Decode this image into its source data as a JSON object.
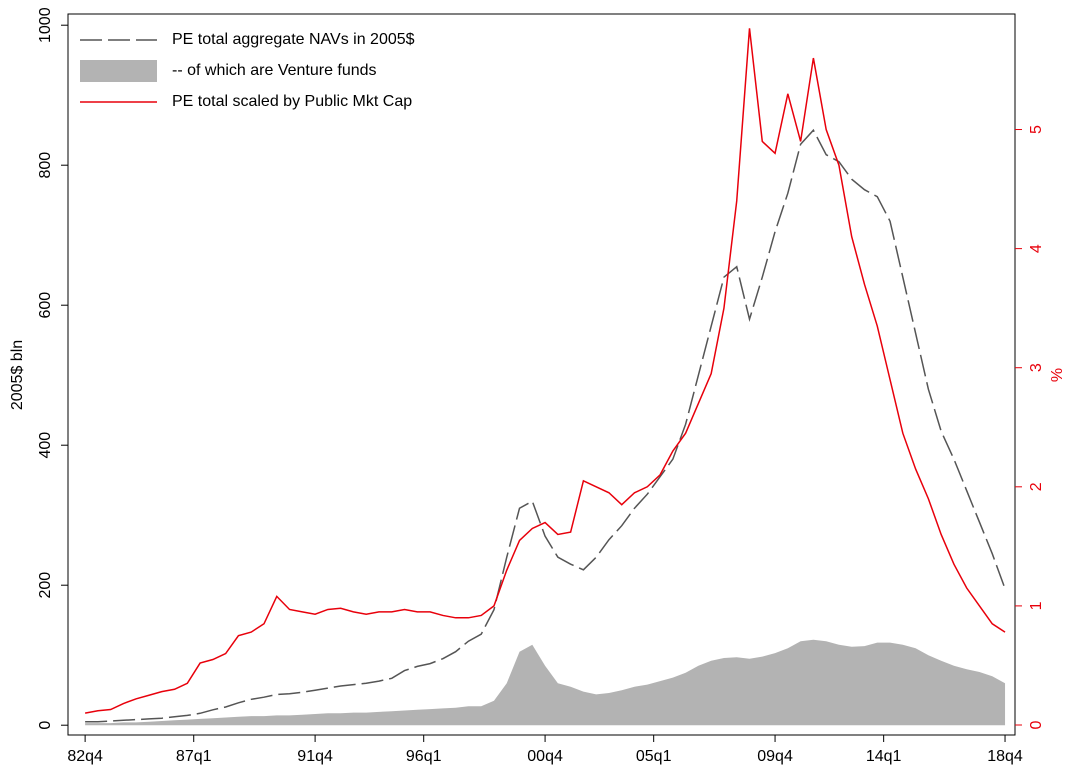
{
  "chart_data": {
    "type": "line",
    "ylabel": "2005$ bln",
    "y2label": "%",
    "xlim": [
      1982.08,
      2019.14
    ],
    "ylim": [
      -14,
      1016
    ],
    "y2lim": [
      -0.084,
      5.97
    ],
    "xticks": [
      {
        "value": 1982.75,
        "label": "82q4"
      },
      {
        "value": 1987,
        "label": "87q1"
      },
      {
        "value": 1991.75,
        "label": "91q4"
      },
      {
        "value": 1996,
        "label": "96q1"
      },
      {
        "value": 2000.75,
        "label": "00q4"
      },
      {
        "value": 2005,
        "label": "05q1"
      },
      {
        "value": 2009.75,
        "label": "09q4"
      },
      {
        "value": 2014,
        "label": "14q1"
      },
      {
        "value": 2018.75,
        "label": "18q4"
      }
    ],
    "yticks": [
      0,
      200,
      400,
      600,
      800,
      1000
    ],
    "y2ticks": [
      0,
      1,
      2,
      3,
      4,
      5
    ],
    "y2color": "#e8000b",
    "legend": "top-left",
    "x": [
      1982.75,
      1983.25,
      1983.75,
      1984.25,
      1984.75,
      1985.25,
      1985.75,
      1986.25,
      1986.75,
      1987.25,
      1987.75,
      1988.25,
      1988.75,
      1989.25,
      1989.75,
      1990.25,
      1990.75,
      1991.25,
      1991.75,
      1992.25,
      1992.75,
      1993.25,
      1993.75,
      1994.25,
      1994.75,
      1995.25,
      1995.75,
      1996.25,
      1996.75,
      1997.25,
      1997.75,
      1998.25,
      1998.75,
      1999.25,
      1999.75,
      2000.25,
      2000.75,
      2001.25,
      2001.75,
      2002.25,
      2002.75,
      2003.25,
      2003.75,
      2004.25,
      2004.75,
      2005.25,
      2005.75,
      2006.25,
      2006.75,
      2007.25,
      2007.75,
      2008.25,
      2008.75,
      2009.25,
      2009.75,
      2010.25,
      2010.75,
      2011.25,
      2011.75,
      2012.25,
      2012.75,
      2013.25,
      2013.75,
      2014.25,
      2014.75,
      2015.25,
      2015.75,
      2016.25,
      2016.75,
      2017.25,
      2017.75,
      2018.25,
      2018.75
    ],
    "series": [
      {
        "name": "PE total aggregate NAVs in 2005$",
        "kind": "line",
        "dash": true,
        "color": "#555555",
        "axis": "y",
        "values": [
          5,
          5,
          6,
          7,
          8,
          9,
          10,
          12,
          14,
          17,
          22,
          26,
          32,
          37,
          40,
          44,
          45,
          47,
          50,
          53,
          56,
          58,
          60,
          63,
          67,
          78,
          84,
          88,
          95,
          105,
          120,
          130,
          165,
          240,
          310,
          320,
          270,
          240,
          230,
          222,
          240,
          265,
          285,
          310,
          330,
          355,
          380,
          430,
          500,
          570,
          640,
          655,
          580,
          640,
          705,
          760,
          830,
          850,
          815,
          805,
          780,
          765,
          755,
          720,
          640,
          560,
          480,
          420,
          380,
          335,
          290,
          245,
          195
        ]
      },
      {
        "name": "-- of which are Venture funds",
        "kind": "area",
        "dash": false,
        "color": "#b3b3b3",
        "axis": "y",
        "values": [
          3,
          3,
          3,
          4,
          4,
          5,
          6,
          7,
          8,
          9,
          10,
          11,
          12,
          13,
          13,
          14,
          14,
          15,
          16,
          17,
          17,
          18,
          18,
          19,
          20,
          21,
          22,
          23,
          24,
          25,
          27,
          27,
          35,
          60,
          105,
          115,
          85,
          60,
          55,
          48,
          44,
          46,
          50,
          55,
          58,
          63,
          68,
          75,
          85,
          92,
          96,
          97,
          95,
          98,
          103,
          110,
          120,
          122,
          120,
          115,
          112,
          113,
          118,
          118,
          115,
          110,
          100,
          92,
          85,
          80,
          76,
          70,
          60
        ]
      },
      {
        "name": "PE total scaled by Public Mkt Cap",
        "kind": "line",
        "dash": false,
        "color": "#e8000b",
        "axis": "y2",
        "values": [
          0.1,
          0.12,
          0.13,
          0.18,
          0.22,
          0.25,
          0.28,
          0.3,
          0.35,
          0.52,
          0.55,
          0.6,
          0.75,
          0.78,
          0.85,
          1.08,
          0.97,
          0.95,
          0.93,
          0.97,
          0.98,
          0.95,
          0.93,
          0.95,
          0.95,
          0.97,
          0.95,
          0.95,
          0.92,
          0.9,
          0.9,
          0.92,
          1.0,
          1.3,
          1.55,
          1.65,
          1.7,
          1.6,
          1.62,
          2.05,
          2.0,
          1.95,
          1.85,
          1.95,
          2.0,
          2.1,
          2.3,
          2.45,
          2.7,
          2.95,
          3.5,
          4.4,
          5.85,
          4.9,
          4.8,
          5.3,
          4.9,
          5.6,
          5.0,
          4.7,
          4.1,
          3.7,
          3.35,
          2.9,
          2.45,
          2.15,
          1.9,
          1.6,
          1.35,
          1.15,
          1.0,
          0.85,
          0.78
        ]
      }
    ]
  }
}
